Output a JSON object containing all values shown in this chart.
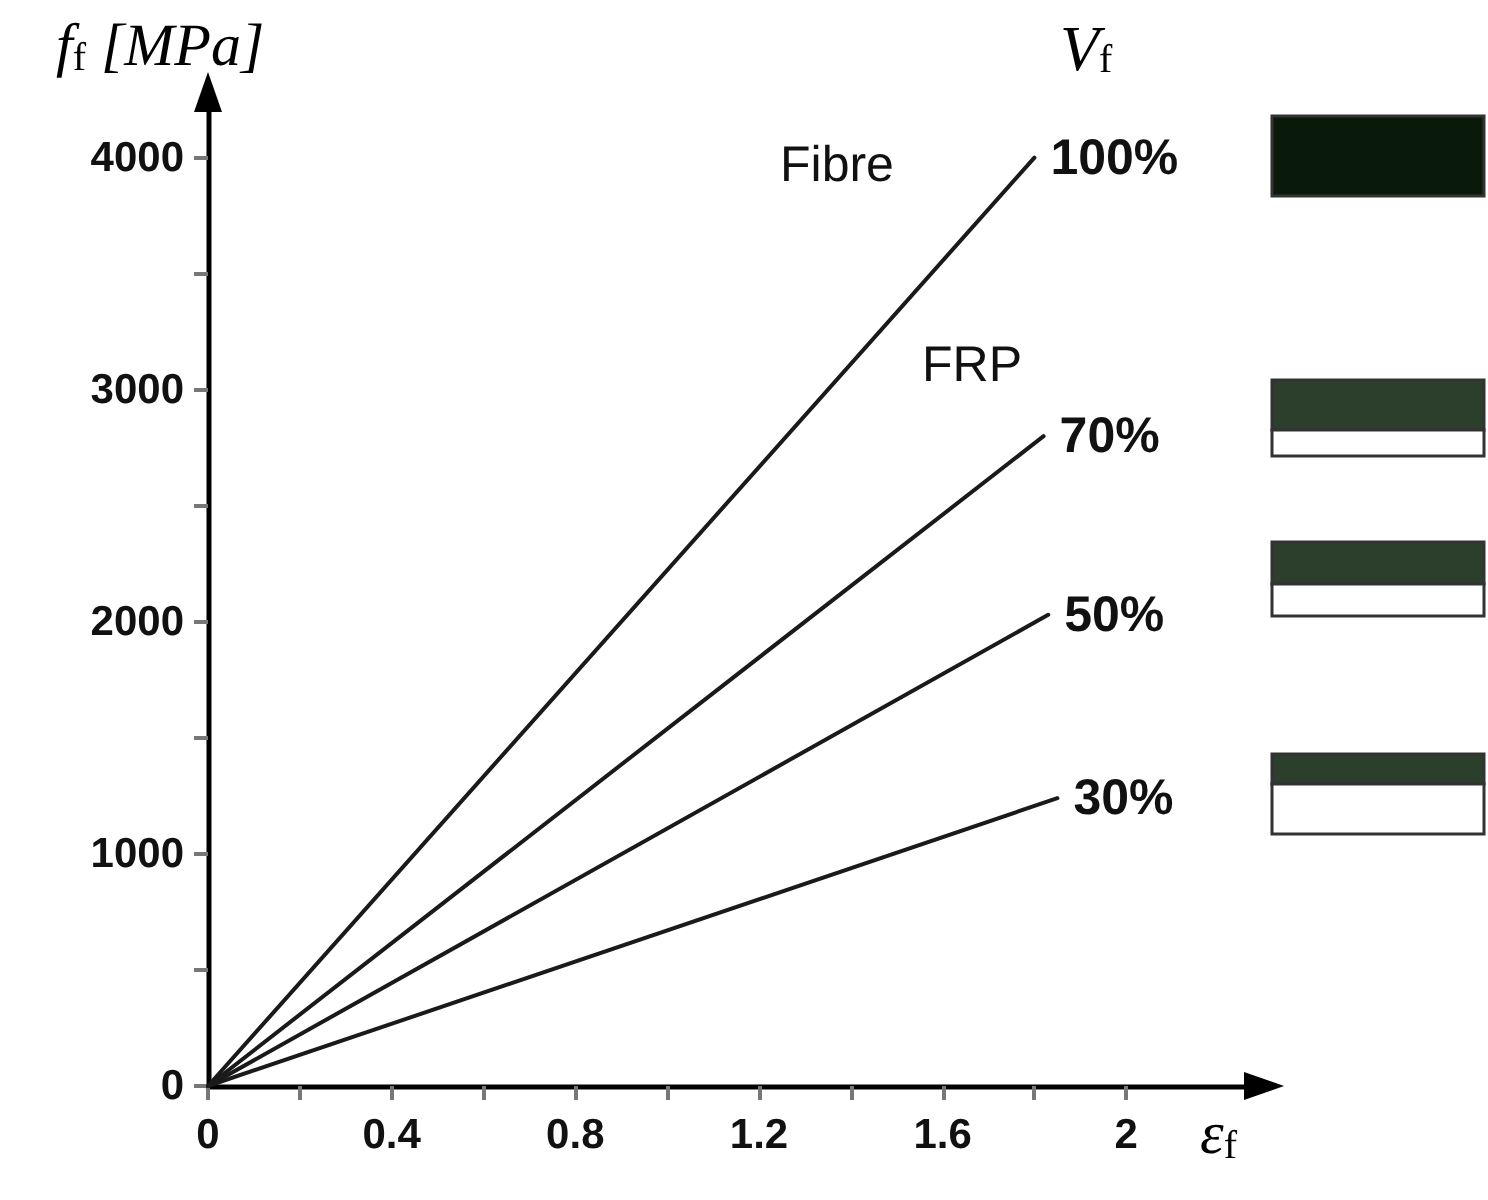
{
  "chart_data": {
    "type": "line",
    "xlabel": "ε$_{f}$",
    "ylabel": "f$_{f}$ [MPa]",
    "legend_title": "V$_{f}$",
    "annotations": [
      "Fibre",
      "FRP"
    ],
    "xlim": [
      0,
      2.3
    ],
    "ylim": [
      0,
      4300
    ],
    "xticks": [
      0,
      {
        "value": 0.2,
        "label": null
      },
      0.4,
      {
        "value": 0.6,
        "label": null
      },
      0.8,
      {
        "value": 1.0,
        "label": null
      },
      1.2,
      {
        "value": 1.4,
        "label": null
      },
      1.6,
      {
        "value": 1.8,
        "label": null
      },
      2
    ],
    "yticks": [
      0,
      {
        "value": 500,
        "label": null
      },
      1000,
      {
        "value": 1500,
        "label": null
      },
      2000,
      {
        "value": 2500,
        "label": null
      },
      3000,
      {
        "value": 3500,
        "label": null
      },
      4000
    ],
    "grid": false,
    "legend": "top right",
    "marker": "none",
    "line_style": "solid",
    "series": [
      {
        "name": "100%",
        "color": "#1a1a1a",
        "x": [
          0,
          1.8
        ],
        "values": [
          0,
          4000
        ]
      },
      {
        "name": "70%",
        "color": "#1a1a1a",
        "x": [
          0,
          1.82
        ],
        "values": [
          0,
          2800
        ]
      },
      {
        "name": "50%",
        "color": "#1a1a1a",
        "x": [
          0,
          1.83
        ],
        "values": [
          0,
          2030
        ]
      },
      {
        "name": "30%",
        "color": "#1a1a1a",
        "x": [
          0,
          1.85
        ],
        "values": [
          0,
          1240
        ]
      }
    ]
  }
}
